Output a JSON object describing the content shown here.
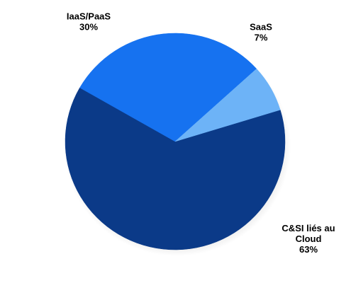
{
  "chart_data": {
    "type": "pie",
    "title": "",
    "slices": [
      {
        "label": "C&SI liés au Cloud",
        "value": 63,
        "value_label": "63%",
        "color": "#0b3a88"
      },
      {
        "label": "IaaS/PaaS",
        "value": 30,
        "value_label": "30%",
        "color": "#1672f0"
      },
      {
        "label": "SaaS",
        "value": 7,
        "value_label": "7%",
        "color": "#6db3f7"
      }
    ],
    "legend": "none",
    "data_labels": "outside, category name and percentage"
  }
}
